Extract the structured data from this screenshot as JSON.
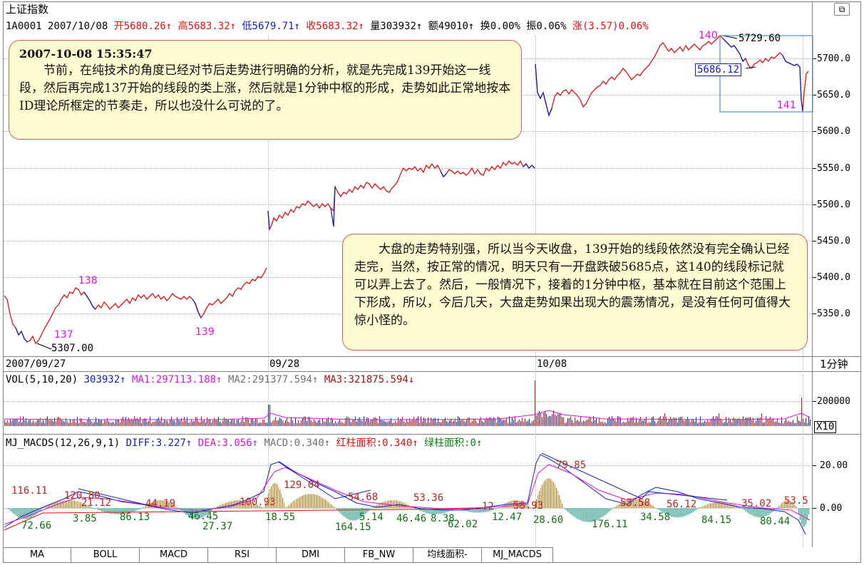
{
  "header": {
    "title": "上证指数",
    "code": "1A0001",
    "date": "2007/10/08",
    "open": "开5680.26",
    "high": "高5683.32",
    "low": "低5679.71",
    "close": "收5683.32",
    "volume": "量303932",
    "amount": "额49010",
    "turnover": "换0.00%",
    "amplitude": "振0.06%",
    "change_label": "涨",
    "change_value": "(3.57)",
    "change_pct": "0.06%"
  },
  "price_axis": [
    "5700.0",
    "5650.0",
    "5600.0",
    "5550.0",
    "5500.0",
    "5450.0",
    "5400.0",
    "5350.0"
  ],
  "date_axis": {
    "d1": "2007/09/27",
    "d2": "09/28",
    "d3": "10/08",
    "period": "1分钟"
  },
  "annotations": {
    "p137": "137",
    "p138": "138",
    "p139": "139",
    "p140": "140",
    "p141": "141",
    "low_value": "5307.00",
    "high_value": "5729.60",
    "box_value": "5686.12"
  },
  "note1": {
    "time": "2007-10-08 15:35:47",
    "text": "节前，在纯技术的角度已经对节后走势进行明确的分析，就是先完成139开始这一线段，然后再完成137开始的线段的类上涨，然后就是1分钟中枢的形成，走势如此正常地按本ID理论所框定的节奏走，所以也没什么可说的了。"
  },
  "note2": {
    "text": "大盘的走势特别强，所以当今天收盘，139开始的线段依然没有完全确认已经走完，当然，按正常的情况，明天只有一开盘跌破5685点，这140的线段标记就可以弄上去了。然后，一般情况下，接着的1分钟中枢，基本就在目前这个范围上下形成，所以，今后几天，大盘走势如果出现大的震荡情况，是没有任何可值得大惊小怪的。"
  },
  "volume_panel": {
    "name": "VOL(5,10,20)",
    "vol": "303932",
    "ma1": "MA1:297113.188",
    "ma2": "MA2:291377.594",
    "ma3": "MA3:321875.594",
    "axis_label": "200000",
    "scale": "X10"
  },
  "macd_panel": {
    "name": "MJ_MACDS(12,26,9,1)",
    "diff": "DIFF:3.227",
    "dea": "DEA:3.056",
    "macd": "MACD:0.340",
    "red_area": "红柱面积:0.340",
    "green_area": "绿柱面积:0",
    "axis_top": "20.00",
    "axis_zero": "0.00",
    "red_labels": [
      "116.11",
      "120.80",
      "21.12",
      "44.19",
      "100.93",
      "129.04",
      "54.68",
      "53.36",
      "12",
      "58.93",
      "79.85",
      "53.58",
      "56.12",
      "35.02",
      "53.5"
    ],
    "green_labels": [
      "72.66",
      "3.85",
      "86.13",
      "46.45",
      "27.37",
      "18.55",
      "164.15",
      "5.14",
      "46.46",
      "8.38",
      "62.02",
      "12.47",
      "28.60",
      "176.11",
      "34.58",
      "84.15",
      "80.44"
    ]
  },
  "tabs": [
    "MA",
    "BOLL",
    "MACD",
    "RSI",
    "DMI",
    "FB_NW",
    "均线面积-",
    "MJ_MACDS"
  ],
  "colors": {
    "up": "#e01010",
    "down": "#1020c0",
    "note_bg": "#fffbd0",
    "note_border": "#d06060",
    "annotation": "#e010e0",
    "box": "#4a90d0"
  }
}
